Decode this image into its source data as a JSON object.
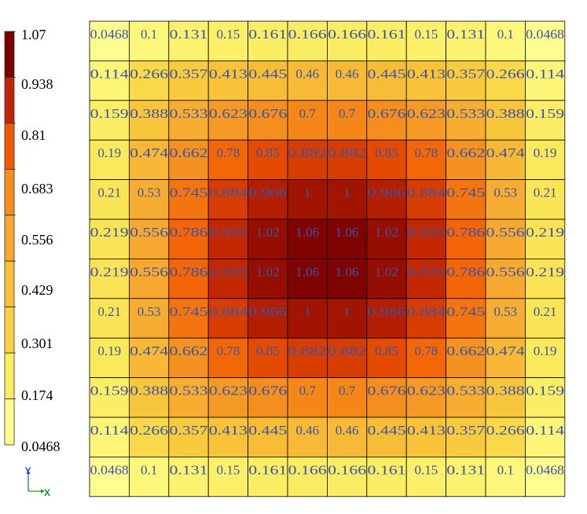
{
  "chart_data": {
    "type": "heatmap",
    "rows": [
      [
        0.0468,
        0.1,
        0.131,
        0.15,
        0.161,
        0.166,
        0.166,
        0.161,
        0.15,
        0.131,
        0.1,
        0.0468
      ],
      [
        0.114,
        0.266,
        0.357,
        0.413,
        0.445,
        0.46,
        0.46,
        0.445,
        0.413,
        0.357,
        0.266,
        0.114
      ],
      [
        0.159,
        0.388,
        0.533,
        0.623,
        0.676,
        0.7,
        0.7,
        0.676,
        0.623,
        0.533,
        0.388,
        0.159
      ],
      [
        0.19,
        0.474,
        0.662,
        0.78,
        0.85,
        0.882,
        0.882,
        0.85,
        0.78,
        0.662,
        0.474,
        0.19
      ],
      [
        0.21,
        0.53,
        0.745,
        0.884,
        0.966,
        1,
        1,
        0.966,
        0.884,
        0.745,
        0.53,
        0.21
      ],
      [
        0.219,
        0.556,
        0.786,
        0.935,
        1.02,
        1.06,
        1.06,
        1.02,
        0.935,
        0.786,
        0.556,
        0.219
      ],
      [
        0.219,
        0.556,
        0.786,
        0.935,
        1.02,
        1.06,
        1.06,
        1.02,
        0.935,
        0.786,
        0.556,
        0.219
      ],
      [
        0.21,
        0.53,
        0.745,
        0.884,
        0.966,
        1,
        1,
        0.966,
        0.884,
        0.745,
        0.53,
        0.21
      ],
      [
        0.19,
        0.474,
        0.662,
        0.78,
        0.85,
        0.882,
        0.882,
        0.85,
        0.78,
        0.662,
        0.474,
        0.19
      ],
      [
        0.159,
        0.388,
        0.533,
        0.623,
        0.676,
        0.7,
        0.7,
        0.676,
        0.623,
        0.533,
        0.388,
        0.159
      ],
      [
        0.114,
        0.266,
        0.357,
        0.413,
        0.445,
        0.46,
        0.46,
        0.445,
        0.413,
        0.357,
        0.266,
        0.114
      ],
      [
        0.0468,
        0.1,
        0.131,
        0.15,
        0.161,
        0.166,
        0.166,
        0.161,
        0.15,
        0.131,
        0.1,
        0.0468
      ]
    ],
    "colorbar": {
      "ticks": [
        "1.07",
        "0.938",
        "0.81",
        "0.683",
        "0.556",
        "0.429",
        "0.301",
        "0.174",
        "0.0468"
      ],
      "band_colors": [
        "#7a0000",
        "#c02400",
        "#f25a00",
        "#f58c1c",
        "#f7a830",
        "#f8c038",
        "#f8d240",
        "#fbec60",
        "#fefe90"
      ]
    },
    "min": 0.0468,
    "max": 1.07
  },
  "axis_triad": {
    "y_label": "Y",
    "x_label": "X",
    "y_color": "#1f4fd1",
    "x_color": "#1a9a1a"
  }
}
